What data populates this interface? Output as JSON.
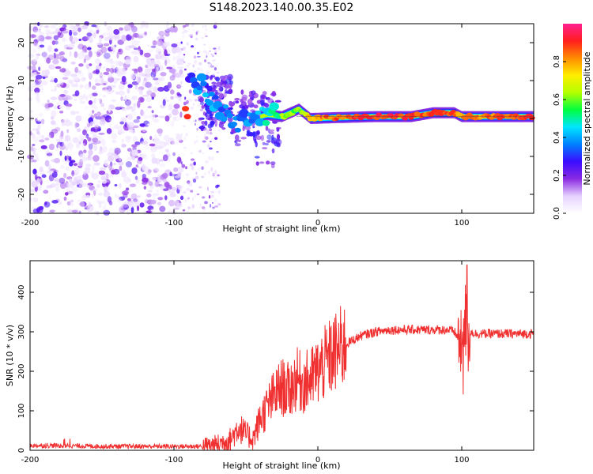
{
  "figure_title": "S148.2023.140.00.35.E02",
  "chart_data": [
    {
      "type": "heatmap",
      "title": "",
      "xlabel": "Height of straight line (km)",
      "ylabel": "Frequency (Hz)",
      "xlim": [
        -200,
        150
      ],
      "ylim": [
        -25,
        25
      ],
      "xticks": [
        -200,
        -100,
        0,
        100
      ],
      "yticks": [
        -20,
        -10,
        0,
        10,
        20
      ],
      "colorbar": {
        "label": "Normalized spectral amplitude",
        "range": [
          0.0,
          1.0
        ],
        "ticks": [
          0.0,
          0.2,
          0.4,
          0.6,
          0.8
        ],
        "colormap": "white-purple-blue-cyan-green-yellow-orange-red-magenta",
        "stops": [
          "#ffffff",
          "#e6d2ff",
          "#8a2be2",
          "#3a0dff",
          "#0080ff",
          "#00e5ff",
          "#00ff40",
          "#b4ff00",
          "#ffee00",
          "#ff8c00",
          "#ff1e1e",
          "#ff2090"
        ]
      },
      "signal_track": [
        {
          "x": -90,
          "freq": 9,
          "amp": 0.3
        },
        {
          "x": -80,
          "freq": 8.5,
          "amp": 0.4
        },
        {
          "x": -75,
          "freq": 6,
          "amp": 0.4
        },
        {
          "x": -70,
          "freq": 3,
          "amp": 0.35
        },
        {
          "x": -65,
          "freq": 1,
          "amp": 0.35
        },
        {
          "x": -55,
          "freq": -1,
          "amp": 0.35
        },
        {
          "x": -45,
          "freq": 0,
          "amp": 0.4
        },
        {
          "x": -35,
          "freq": 1,
          "amp": 0.45
        },
        {
          "x": -25,
          "freq": 0.5,
          "amp": 0.6
        },
        {
          "x": -13,
          "freq": 2.5,
          "amp": 0.6
        },
        {
          "x": -5,
          "freq": 0,
          "amp": 0.8
        },
        {
          "x": 10,
          "freq": 0.2,
          "amp": 0.85
        },
        {
          "x": 40,
          "freq": 0.5,
          "amp": 0.9
        },
        {
          "x": 65,
          "freq": 0.5,
          "amp": 0.9
        },
        {
          "x": 80,
          "freq": 1.5,
          "amp": 0.85
        },
        {
          "x": 95,
          "freq": 1.5,
          "amp": 0.85
        },
        {
          "x": 100,
          "freq": 0.5,
          "amp": 0.8
        },
        {
          "x": 150,
          "freq": 0.5,
          "amp": 0.9
        }
      ],
      "noise_region": {
        "x_range": [
          -200,
          -80
        ],
        "amp_range": [
          0.0,
          0.25
        ]
      }
    },
    {
      "type": "line",
      "title": "",
      "xlabel": "Height of straight line (km)",
      "ylabel": "SNR (10 * v/v)",
      "xlim": [
        -200,
        150
      ],
      "ylim": [
        0,
        480
      ],
      "xticks": [
        -200,
        -100,
        0,
        100
      ],
      "yticks": [
        0,
        100,
        200,
        300,
        400
      ],
      "series": [
        {
          "name": "SNR",
          "color": "#f03030",
          "x": [
            -200,
            -180,
            -150,
            -120,
            -100,
            -80,
            -70,
            -60,
            -55,
            -50,
            -45,
            -40,
            -35,
            -30,
            -25,
            -20,
            -15,
            -10,
            -5,
            0,
            10,
            20,
            30,
            40,
            50,
            60,
            70,
            80,
            90,
            95,
            98,
            100,
            102,
            104,
            106,
            110,
            120,
            130,
            140,
            150
          ],
          "values": [
            12,
            12,
            10,
            10,
            10,
            10,
            15,
            30,
            60,
            40,
            30,
            80,
            110,
            140,
            160,
            150,
            180,
            170,
            180,
            200,
            240,
            270,
            290,
            300,
            305,
            305,
            305,
            305,
            305,
            300,
            280,
            260,
            330,
            270,
            300,
            295,
            295,
            295,
            295,
            295
          ]
        }
      ]
    }
  ]
}
